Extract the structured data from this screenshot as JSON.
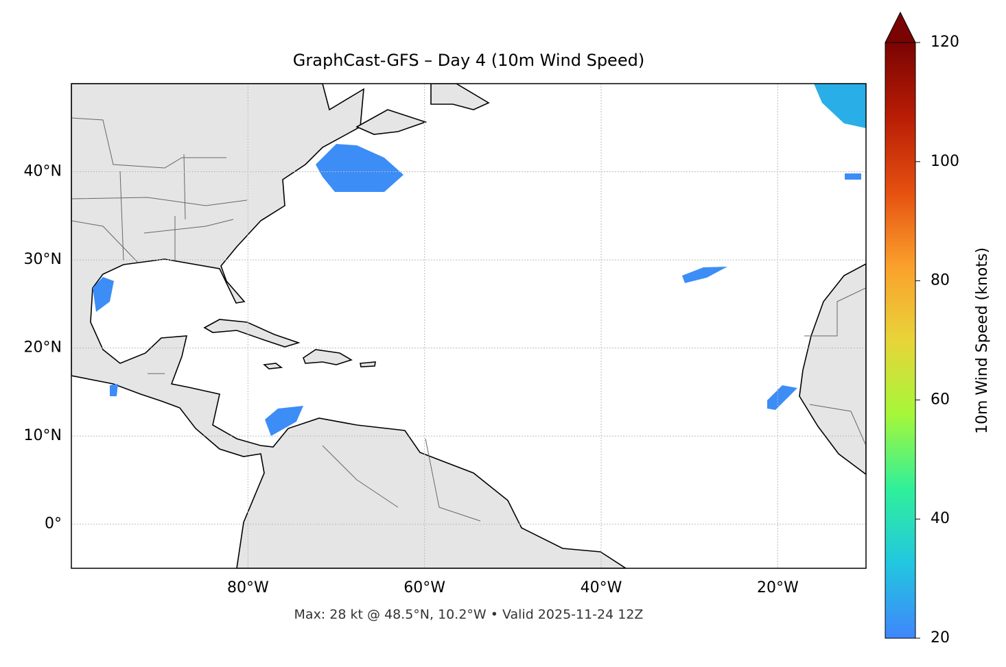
{
  "chart_data": {
    "type": "map",
    "title": "GraphCast-GFS – Day 4 (10m Wind Speed)",
    "annotation": "Max: 28 kt @ 48.5°N, 10.2°W • Valid 2025-11-24 12Z",
    "xlim": [
      -100,
      -10
    ],
    "ylim": [
      -5,
      50
    ],
    "xticks": [
      {
        "value": -80,
        "label": "80°W"
      },
      {
        "value": -60,
        "label": "60°W"
      },
      {
        "value": -40,
        "label": "40°W"
      },
      {
        "value": -20,
        "label": "20°W"
      }
    ],
    "yticks": [
      {
        "value": 0,
        "label": "0°"
      },
      {
        "value": 10,
        "label": "10°N"
      },
      {
        "value": 20,
        "label": "20°N"
      },
      {
        "value": 30,
        "label": "30°N"
      },
      {
        "value": 40,
        "label": "40°N"
      }
    ],
    "grid": true,
    "colorbar": {
      "label": "10m Wind Speed (knots)",
      "lim": [
        20,
        120
      ],
      "ticks": [
        20,
        40,
        60,
        80,
        100,
        120
      ],
      "colors": [
        "#3f86fb",
        "#22c6e0",
        "#2ff09a",
        "#a5f73a",
        "#e8d439",
        "#fba02c",
        "#e55010",
        "#b81d05",
        "#7a0403"
      ]
    }
  }
}
